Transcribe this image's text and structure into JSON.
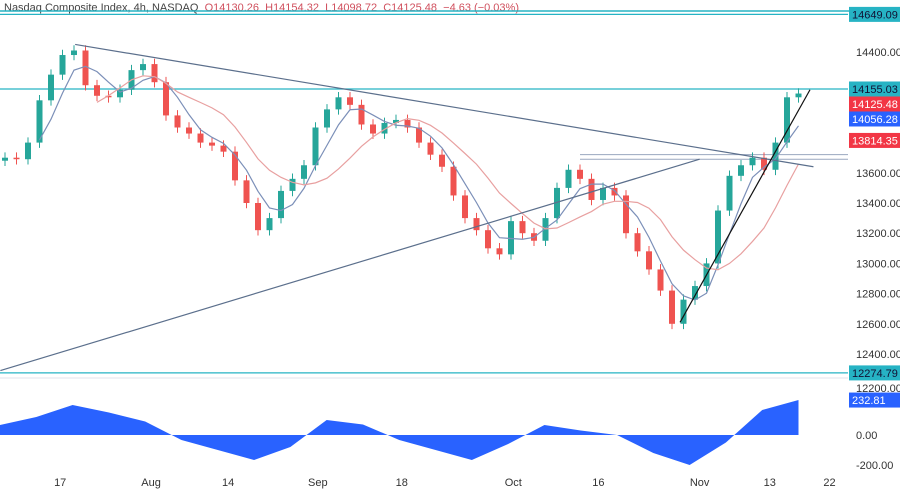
{
  "header": {
    "symbol": "Nasdaq Composite Index, 4h, NASDAQ",
    "open": "O14130.26",
    "high": "H14154.32",
    "low": "L14098.72",
    "close": "C14125.48",
    "change": "−4.63 (−0.03%)"
  },
  "chart_data": {
    "type": "candlestick",
    "title": "Nasdaq Composite Index, 4h, NASDAQ",
    "ylim": [
      12200,
      14700
    ],
    "y_ticks": [
      "14400.00",
      "13600.00",
      "13400.00",
      "13200.00",
      "13000.00",
      "12800.00",
      "12600.00",
      "12400.00",
      "12200.00"
    ],
    "y_tick_values": [
      14400,
      13600,
      13400,
      13200,
      13000,
      12800,
      12600,
      12400,
      12200
    ],
    "x_ticks": [
      "17",
      "Aug",
      "14",
      "Sep",
      "18",
      "Oct",
      "16",
      "Nov",
      "13",
      "22"
    ],
    "x_tick_index": [
      4.8,
      12.7,
      19.4,
      27.2,
      34.5,
      44.2,
      51.6,
      60.4,
      66.5,
      71.7
    ],
    "closes": [
      13700,
      13690,
      13800,
      14080,
      14250,
      14380,
      14410,
      14180,
      14110,
      14100,
      14150,
      14280,
      14320,
      14200,
      13980,
      13900,
      13860,
      13800,
      13780,
      13740,
      13550,
      13400,
      13220,
      13300,
      13480,
      13560,
      13650,
      13900,
      14020,
      14100,
      14050,
      13920,
      13860,
      13930,
      13950,
      13900,
      13800,
      13720,
      13640,
      13450,
      13300,
      13220,
      13100,
      13060,
      13280,
      13200,
      13150,
      13300,
      13500,
      13620,
      13560,
      13420,
      13500,
      13450,
      13200,
      13080,
      12960,
      12820,
      12600,
      12760,
      12850,
      13000,
      13350,
      13580,
      13650,
      13700,
      13620,
      13800,
      14100,
      14125
    ],
    "horizontal_levels": [
      {
        "price": 14649.09,
        "label": "14649.09"
      },
      {
        "price": 14155.03,
        "label": "14155.03"
      },
      {
        "price": 12274.79,
        "label": "12274.79"
      }
    ],
    "price_tags": [
      {
        "price": 14125.48,
        "label": "14125.48",
        "color": "#f23645"
      },
      {
        "price": 14056.28,
        "label": "14056.28",
        "color": "#2962ff"
      },
      {
        "price": 13814.35,
        "label": "13814.35",
        "color": "#f23645"
      }
    ],
    "trendlines": [
      {
        "from": [
          6.1,
          14450
        ],
        "to": [
          70.3,
          13640
        ],
        "color": "#5b6f8c"
      },
      {
        "from": [
          -0.4,
          12290
        ],
        "to": [
          60.4,
          13690
        ],
        "color": "#5b6f8c"
      },
      {
        "from": [
          58.7,
          12610
        ],
        "to": [
          70,
          14150
        ],
        "color": "#111111"
      }
    ],
    "zone": {
      "from_index": 50,
      "prices": [
        13720,
        13690
      ]
    },
    "moving_averages": [
      {
        "period": 4,
        "color": "#7b8fb8"
      },
      {
        "period": 9,
        "color": "#e8a0a0"
      }
    ],
    "oscillator": {
      "values": [
        67,
        120,
        200,
        150,
        90,
        -33,
        -100,
        -167,
        -80,
        100,
        70,
        -33,
        -100,
        -167,
        -60,
        67,
        30,
        0,
        -120,
        -200,
        -50,
        167,
        233
      ],
      "ylim": [
        -280,
        290
      ],
      "y_ticks": [
        "0.00",
        "-200.00"
      ],
      "y_tick_values": [
        0,
        -200
      ],
      "last_label": "232.81",
      "color": "#2962ff"
    },
    "colors": {
      "up": "#26a69a",
      "down": "#ef5350",
      "level": "#26b3c4"
    }
  }
}
